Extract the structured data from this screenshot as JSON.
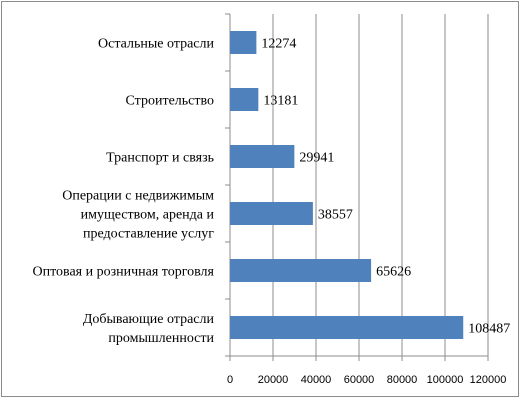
{
  "chart_data": {
    "type": "bar",
    "orientation": "horizontal",
    "categories": [
      [
        "Остальные отрасли"
      ],
      [
        "Строительство"
      ],
      [
        "Транспорт и связь"
      ],
      [
        "Операции с недвижимым",
        "имуществом,  аренда и",
        "предоставление услуг"
      ],
      [
        "Оптовая и розничная торговля"
      ],
      [
        "Добывающие отрасли",
        "промышленности"
      ]
    ],
    "values": [
      12274,
      13181,
      29941,
      38557,
      65626,
      108487
    ],
    "xlim": [
      0,
      120000
    ],
    "xticks": [
      "0",
      "20000",
      "40000",
      "60000",
      "80000",
      "100000",
      "120000"
    ],
    "grid": "vertical",
    "legend": "none",
    "bar_color": "#4F81BD"
  }
}
